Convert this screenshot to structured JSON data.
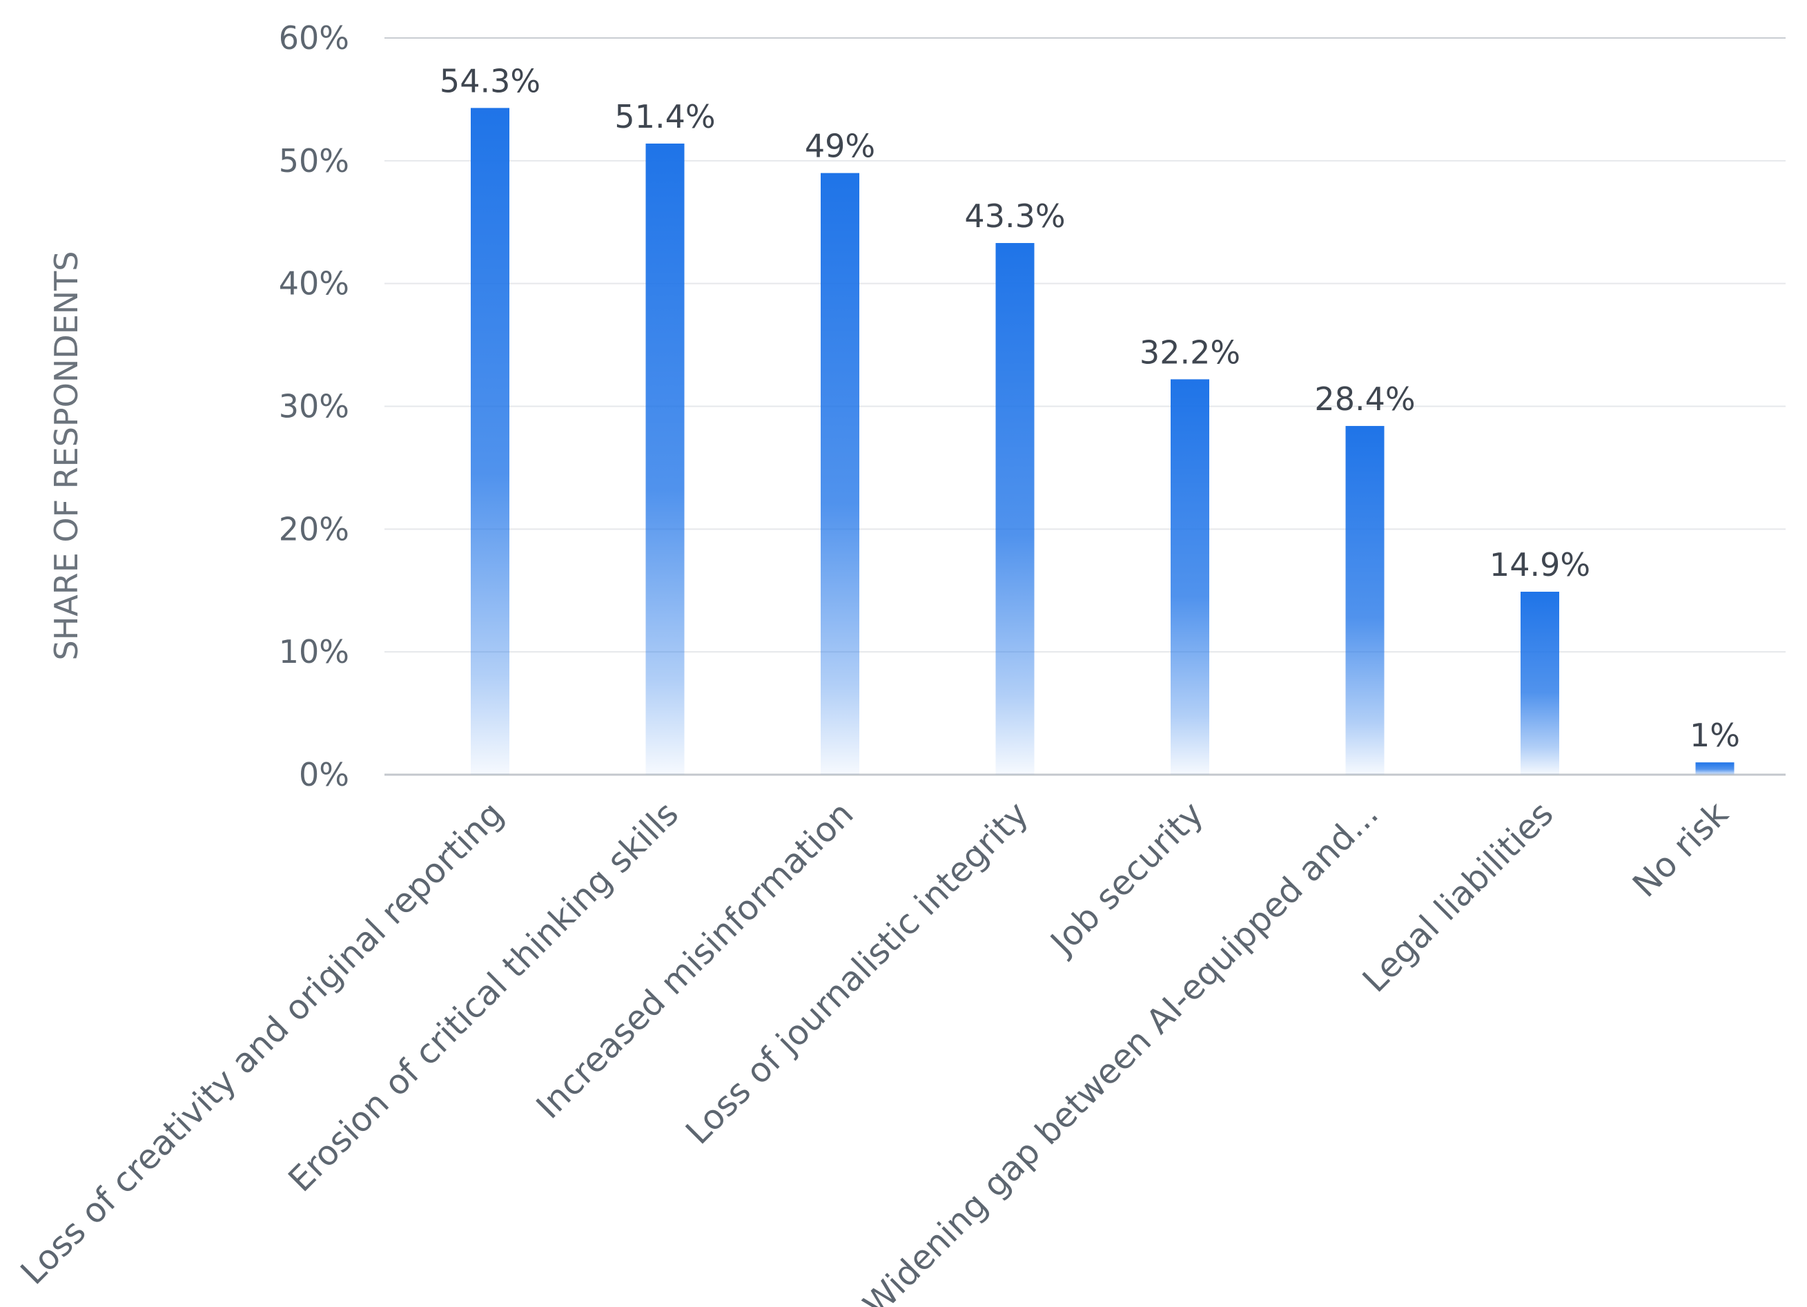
{
  "chart_data": {
    "type": "bar",
    "ylabel": "SHARE OF RESPONDENTS",
    "xlabel": "",
    "ylim": [
      0,
      60
    ],
    "yticks": [
      0,
      10,
      20,
      30,
      40,
      50,
      60
    ],
    "ytick_labels": [
      "0%",
      "10%",
      "20%",
      "30%",
      "40%",
      "50%",
      "60%"
    ],
    "grid": true,
    "legend": "none",
    "categories": [
      "Loss of creativity and original reporting",
      "Erosion of critical thinking skills",
      "Increased misinformation",
      "Loss of journalistic integrity",
      "Job security",
      "Widening gap between AI-equipped and...",
      "Legal liabilities",
      "No risk"
    ],
    "values": [
      54.3,
      51.4,
      49,
      43.3,
      32.2,
      28.4,
      14.9,
      1
    ],
    "value_labels": [
      "54.3%",
      "51.4%",
      "49%",
      "43.3%",
      "32.2%",
      "28.4%",
      "14.9%",
      "1%"
    ],
    "colors": {
      "bar": "#1f74e8",
      "bar_fade": "#ffffff",
      "grid": "#e6e8eb",
      "axis": "#c4c8cd"
    }
  }
}
